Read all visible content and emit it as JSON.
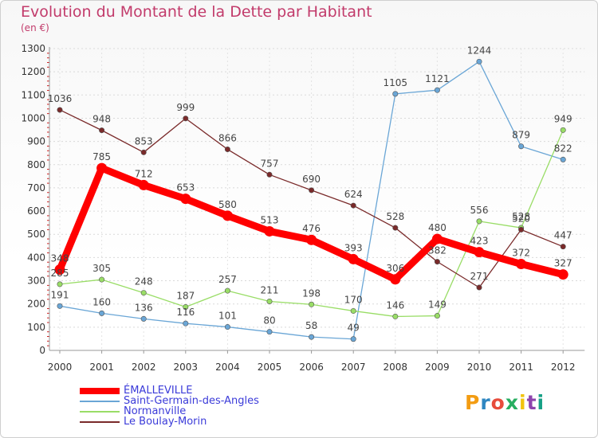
{
  "title": "Evolution du Montant de la Dette par Habitant",
  "subtitle": "(en €)",
  "chart_data": {
    "type": "line",
    "x": [
      "2000",
      "2001",
      "2002",
      "2003",
      "2004",
      "2005",
      "2006",
      "2007",
      "2008",
      "2009",
      "2010",
      "2011",
      "2012"
    ],
    "ylim": [
      0,
      1300
    ],
    "yticks": [
      0,
      100,
      200,
      300,
      400,
      500,
      600,
      700,
      800,
      900,
      1000,
      1100,
      1200,
      1300
    ],
    "grid": true,
    "legend_position": "bottom-left",
    "series": [
      {
        "name": "ÉMALLEVILLE",
        "color": "#ff0000",
        "values": [
          348,
          785,
          712,
          653,
          580,
          513,
          476,
          393,
          306,
          480,
          423,
          372,
          327
        ]
      },
      {
        "name": "Saint-Germain-des-Angles",
        "color": "#6aa6d6",
        "values": [
          191,
          160,
          136,
          116,
          101,
          80,
          58,
          49,
          1105,
          1121,
          1244,
          879,
          822
        ]
      },
      {
        "name": "Normanville",
        "color": "#99dd66",
        "values": [
          285,
          305,
          248,
          187,
          257,
          211,
          198,
          170,
          146,
          149,
          556,
          528,
          949
        ]
      },
      {
        "name": "Le Boulay-Morin",
        "color": "#7a2a2a",
        "values": [
          1036,
          948,
          853,
          999,
          866,
          757,
          690,
          624,
          528,
          382,
          271,
          520,
          447
        ]
      }
    ],
    "labels": [
      [
        "348",
        "785",
        "712",
        "653",
        "580",
        "513",
        "476",
        "393",
        "306",
        "480",
        "423",
        "372",
        "327"
      ],
      [
        "191",
        "160",
        "136",
        "116",
        "101",
        "80",
        "58",
        "49",
        "1105",
        "1121",
        "1244",
        "879",
        "822"
      ],
      [
        "285",
        "305",
        "248",
        "187",
        "257",
        "211",
        "198",
        "170",
        "146",
        "149",
        "556",
        "528",
        "949"
      ],
      [
        "1036",
        "948",
        "853",
        "999",
        "866",
        "757",
        "690",
        "624",
        "528",
        "382",
        "271",
        "520",
        "447"
      ]
    ]
  },
  "logo": {
    "text": "Proxiti",
    "colors": [
      "#f39c12",
      "#2e86c1",
      "#e74c3c",
      "#27ae60",
      "#f1c40f",
      "#8e44ad",
      "#16a085"
    ]
  }
}
